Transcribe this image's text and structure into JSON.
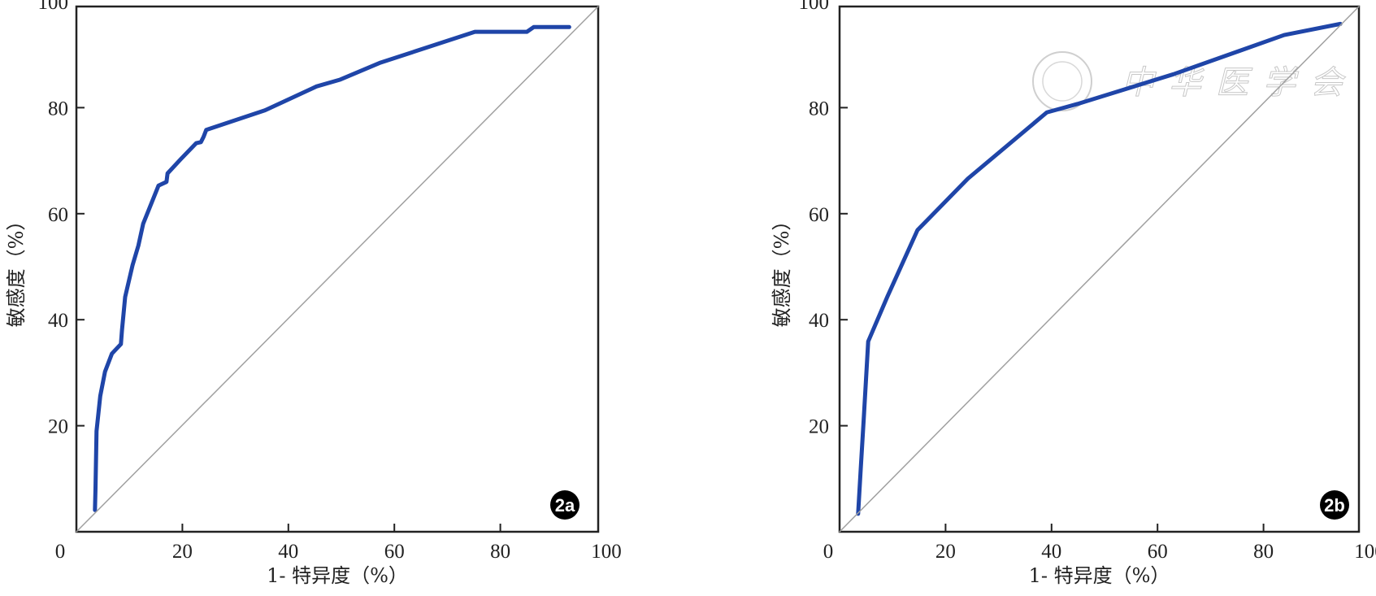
{
  "chart_data": [
    {
      "type": "line",
      "panel_label": "2a",
      "xlabel": "1- 特异度（%）",
      "ylabel": "敏感度（%）",
      "xlim": [
        0,
        100
      ],
      "ylim": [
        0,
        100
      ],
      "origin_label": "0",
      "xticks": [
        20,
        40,
        60,
        80,
        100
      ],
      "yticks": [
        20,
        40,
        60,
        80,
        100
      ],
      "grid": false,
      "series": [
        {
          "name": "ROC",
          "color": "#1f45a8",
          "x": [
            3.5,
            3.6,
            3.8,
            4.5,
            5.4,
            6.7,
            8.4,
            8.6,
            9.2,
            10.6,
            11.7,
            12.6,
            15.5,
            17.0,
            17.2,
            19.7,
            22.6,
            23.5,
            24.0,
            24.5,
            35.6,
            45.3,
            49.8,
            57.4,
            75.2,
            85.0,
            86.3,
            93.0
          ],
          "y": [
            4.1,
            8.0,
            19.0,
            25.6,
            30.2,
            33.6,
            35.4,
            38.0,
            44.3,
            50.3,
            54.0,
            58.1,
            65.3,
            66.0,
            67.6,
            70.3,
            73.3,
            73.5,
            74.5,
            75.8,
            79.5,
            84.0,
            85.3,
            88.5,
            94.3,
            94.3,
            95.2,
            95.2
          ]
        },
        {
          "name": "reference",
          "color": "#a0a0a0",
          "x": [
            0,
            100
          ],
          "y": [
            0,
            100
          ]
        }
      ]
    },
    {
      "type": "line",
      "panel_label": "2b",
      "xlabel": "1- 特异度（%）",
      "ylabel": "敏感度（%）",
      "xlim": [
        0,
        100
      ],
      "ylim": [
        0,
        100
      ],
      "origin_label": "0",
      "xticks": [
        20,
        40,
        60,
        80,
        100
      ],
      "yticks": [
        20,
        40,
        60,
        80,
        100
      ],
      "grid": false,
      "watermark": "中华医学会",
      "series": [
        {
          "name": "ROC",
          "color": "#1f45a8",
          "x": [
            3.5,
            4.0,
            4.6,
            5.4,
            9.0,
            14.7,
            24.2,
            39.1,
            44.9,
            63.0,
            83.9,
            94.5
          ],
          "y": [
            3.4,
            12.0,
            22.0,
            35.9,
            44.3,
            56.9,
            66.6,
            79.1,
            80.7,
            86.3,
            93.7,
            95.8
          ]
        },
        {
          "name": "reference",
          "color": "#a0a0a0",
          "x": [
            0,
            100
          ],
          "y": [
            0,
            100
          ]
        }
      ]
    }
  ]
}
